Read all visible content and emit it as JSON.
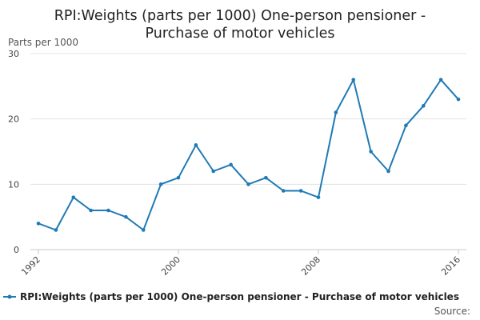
{
  "chart_data": {
    "type": "line",
    "title": [
      "RPI:Weights (parts per 1000) One-person pensioner -",
      "Purchase of motor vehicles"
    ],
    "ylabel": "Parts per 1000",
    "xlabel": "",
    "ylim": [
      0,
      30
    ],
    "yticks": [
      "0",
      "10",
      "20",
      "30"
    ],
    "xticks": [
      1992,
      2000,
      2008,
      2016
    ],
    "x_range": [
      1992,
      2016
    ],
    "grid": true,
    "legend_position": "bottom",
    "series": [
      {
        "name": "RPI:Weights (parts per 1000) One-person pensioner - Purchase of motor vehicles",
        "color": "#1f7ab5",
        "x": [
          1992,
          1993,
          1994,
          1995,
          1996,
          1997,
          1998,
          1999,
          2000,
          2001,
          2002,
          2003,
          2004,
          2005,
          2006,
          2007,
          2008,
          2009,
          2010,
          2011,
          2012,
          2013,
          2014,
          2015,
          2016
        ],
        "values": [
          4,
          3,
          8,
          6,
          6,
          5,
          3,
          10,
          11,
          16,
          12,
          13,
          10,
          11,
          9,
          9,
          8,
          21,
          26,
          15,
          12,
          19,
          22,
          26,
          23
        ]
      }
    ],
    "source": "Source:"
  }
}
